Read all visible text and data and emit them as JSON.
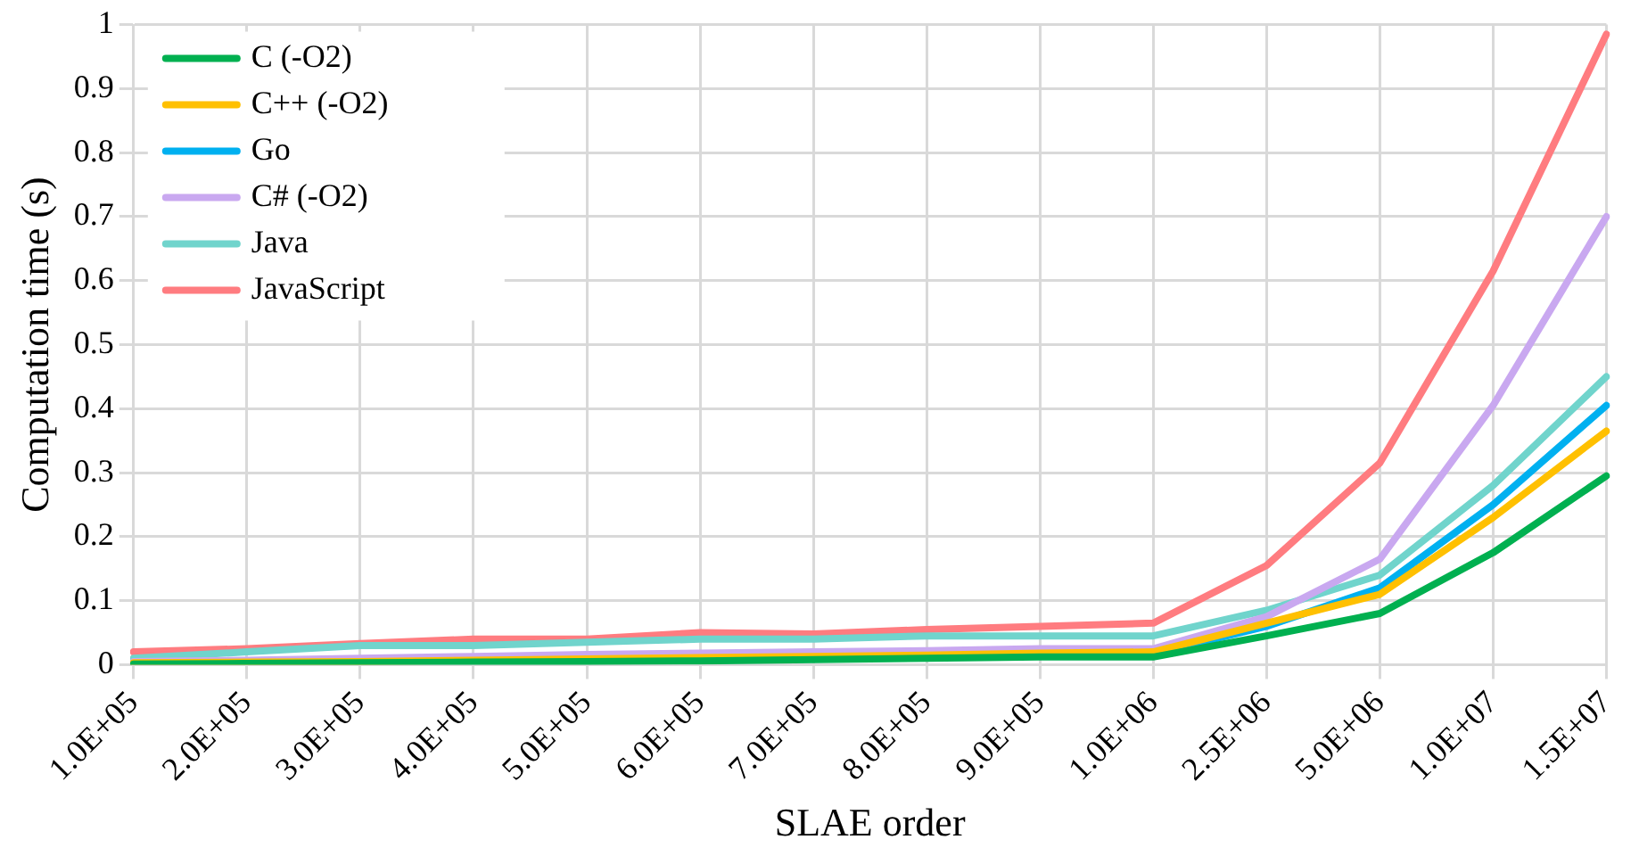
{
  "chart_data": {
    "type": "line",
    "xlabel": "SLAE order",
    "ylabel": "Computation time (s)",
    "categories": [
      "1.0E+05",
      "2.0E+05",
      "3.0E+05",
      "4.0E+05",
      "5.0E+05",
      "6.0E+05",
      "7.0E+05",
      "8.0E+05",
      "9.0E+05",
      "1.0E+06",
      "2.5E+06",
      "5.0E+06",
      "1.0E+07",
      "1.5E+07"
    ],
    "series": [
      {
        "name": "C (-O2)",
        "color": "#00b050",
        "values": [
          0.001,
          0.002,
          0.003,
          0.004,
          0.005,
          0.006,
          0.008,
          0.01,
          0.012,
          0.012,
          0.045,
          0.08,
          0.175,
          0.295
        ]
      },
      {
        "name": "C++ (-O2)",
        "color": "#ffc000",
        "values": [
          0.003,
          0.004,
          0.005,
          0.007,
          0.009,
          0.011,
          0.013,
          0.015,
          0.018,
          0.02,
          0.065,
          0.11,
          0.23,
          0.365
        ]
      },
      {
        "name": "Go",
        "color": "#00b0f0",
        "values": [
          null,
          null,
          null,
          null,
          null,
          null,
          null,
          null,
          null,
          0.017,
          0.06,
          0.12,
          0.25,
          0.405
        ]
      },
      {
        "name": "C# (-O2)",
        "color": "#c9a8f0",
        "values": [
          0.005,
          0.007,
          0.01,
          0.013,
          0.016,
          0.018,
          0.02,
          0.022,
          0.025,
          0.025,
          0.075,
          0.165,
          0.405,
          0.7
        ]
      },
      {
        "name": "Java",
        "color": "#70d4cc",
        "values": [
          0.01,
          0.02,
          0.03,
          0.03,
          0.035,
          0.04,
          0.04,
          0.045,
          0.045,
          0.045,
          0.085,
          0.14,
          0.28,
          0.45
        ]
      },
      {
        "name": "JavaScript",
        "color": "#ff7c80",
        "values": [
          0.02,
          0.025,
          0.033,
          0.04,
          0.04,
          0.05,
          0.048,
          0.055,
          0.06,
          0.065,
          0.155,
          0.315,
          0.615,
          0.985
        ]
      }
    ],
    "ylim": [
      0,
      1
    ],
    "yticks": [
      0,
      0.1,
      0.2,
      0.3,
      0.4,
      0.5,
      0.6,
      0.7,
      0.8,
      0.9,
      1
    ],
    "grid": true,
    "legend": "top left",
    "marker": "none",
    "line_style": "solid"
  }
}
